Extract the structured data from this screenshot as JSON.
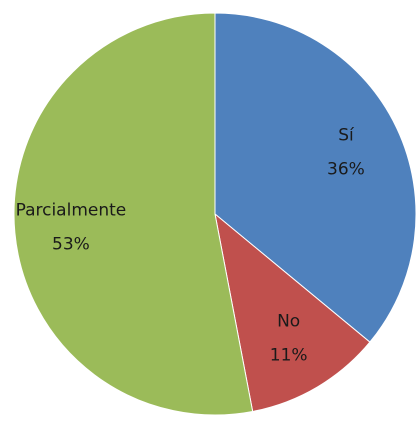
{
  "chart_data": {
    "type": "pie",
    "categories": [
      "Sí",
      "No",
      "Parcialmente"
    ],
    "values": [
      36,
      11,
      53
    ],
    "value_labels": [
      "36%",
      "11%",
      "53%"
    ],
    "colors": [
      "#4f81bd",
      "#c0504d",
      "#9bbb59"
    ]
  }
}
